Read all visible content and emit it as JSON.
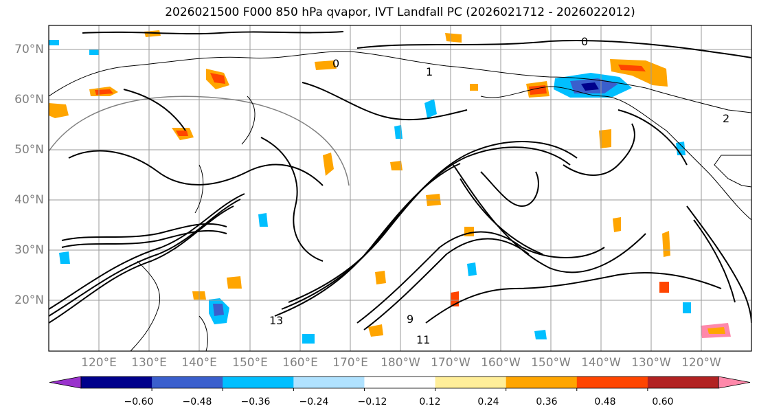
{
  "title": "2026021500 F000 850 hPa qvapor, IVT Landfall PC (2026021712 - 2026022012)",
  "map": {
    "lat_labels": [
      "70°N",
      "60°N",
      "50°N",
      "40°N",
      "30°N",
      "20°N"
    ],
    "lon_labels": [
      "120°E",
      "130°E",
      "140°E",
      "150°E",
      "160°E",
      "170°E",
      "180°W",
      "170°W",
      "160°W",
      "150°W",
      "140°W",
      "130°W",
      "120°W"
    ],
    "contour_labels": [
      "0",
      "1",
      "2",
      "9",
      "11",
      "13"
    ],
    "lat_range": [
      10,
      75
    ],
    "lon_range": [
      113,
      253
    ]
  },
  "colorbar": {
    "tick_labels": [
      "−0.60",
      "−0.48",
      "−0.36",
      "−0.24",
      "−0.12",
      "0.12",
      "0.24",
      "0.36",
      "0.48",
      "0.60"
    ],
    "colors": [
      "#9932cc",
      "#00008b",
      "#3a5fcd",
      "#00bfff",
      "#b0e2ff",
      "#ffffff",
      "#ffee99",
      "#ffa500",
      "#ff4500",
      "#b22222",
      "#ff88aa"
    ]
  }
}
